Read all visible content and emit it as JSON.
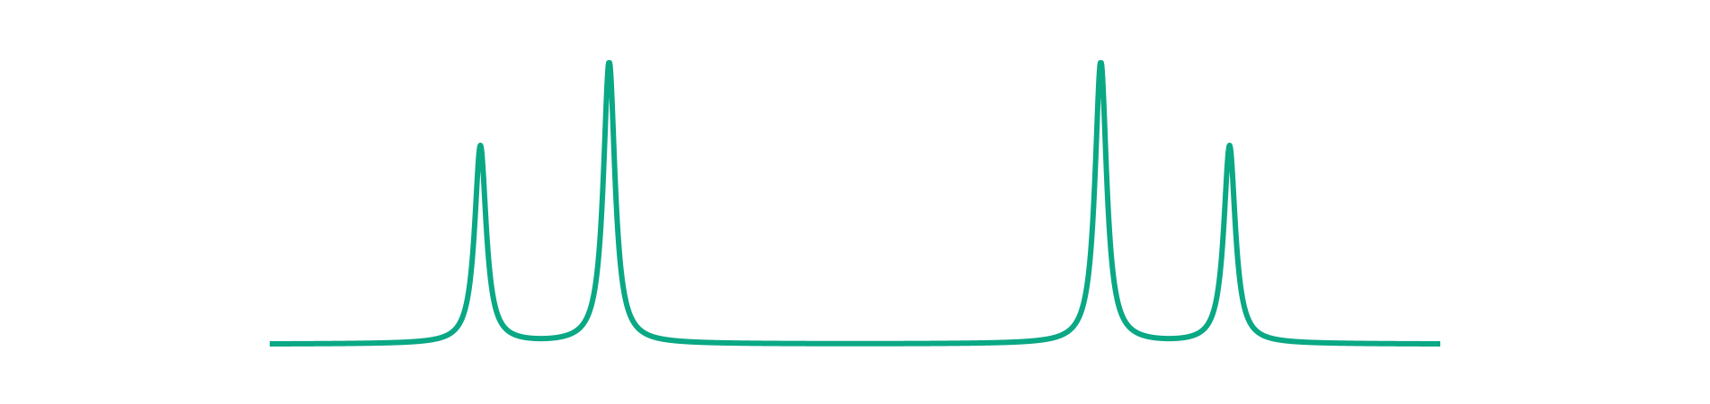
{
  "chart_data": {
    "type": "line",
    "title": "",
    "xlabel": "",
    "ylabel": "",
    "grid": false,
    "legend": "none",
    "axes_visible": false,
    "xlim": [
      -1.0,
      1.0
    ],
    "ylim": [
      0.0,
      1.0
    ],
    "baseline": 0.005,
    "peaks": [
      {
        "x": -0.64,
        "height": 0.7,
        "halfwidth": 0.012
      },
      {
        "x": -0.42,
        "height": 1.0,
        "halfwidth": 0.012
      },
      {
        "x": 0.42,
        "height": 1.0,
        "halfwidth": 0.012
      },
      {
        "x": 0.64,
        "height": 0.7,
        "halfwidth": 0.012
      }
    ],
    "series": [
      {
        "color": "#0aa885"
      }
    ]
  }
}
